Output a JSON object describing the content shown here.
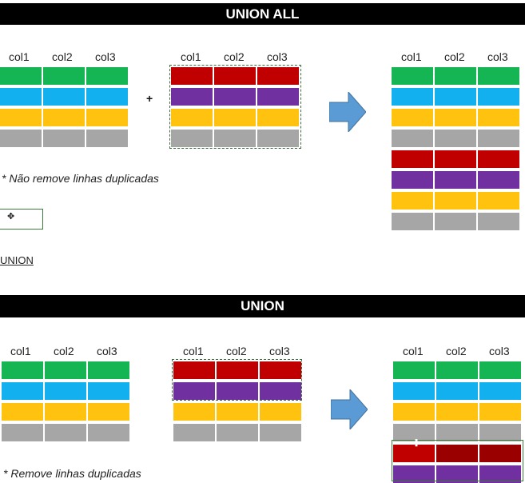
{
  "colors": {
    "green": "#16b554",
    "blue": "#12b0ee",
    "yellow": "#ffc20e",
    "gray": "#a6a6a6",
    "red": "#c00000",
    "purple": "#7030a0",
    "dark_red": "#9b0000",
    "arrow": "#5b9bd5"
  },
  "section1": {
    "title": "UNION ALL",
    "columns": [
      "col1",
      "col2",
      "col3"
    ],
    "plus": "+",
    "note": "* Não remove linhas duplicadas",
    "left_rows": [
      "green",
      "blue",
      "yellow",
      "gray"
    ],
    "middle_rows": [
      "red",
      "purple",
      "yellow",
      "gray"
    ],
    "result_rows": [
      "green",
      "blue",
      "yellow",
      "gray",
      "red",
      "purple",
      "yellow",
      "gray"
    ]
  },
  "link_label": "UNION",
  "section2": {
    "title": "UNION",
    "columns": [
      "col1",
      "col2",
      "col3"
    ],
    "note": "* Remove linhas duplicadas",
    "left_rows": [
      "green",
      "blue",
      "yellow",
      "gray"
    ],
    "middle_rows": [
      "red",
      "purple",
      "yellow",
      "gray"
    ],
    "result_rows": [
      "green",
      "blue",
      "yellow",
      "gray",
      "red",
      "purple"
    ]
  }
}
